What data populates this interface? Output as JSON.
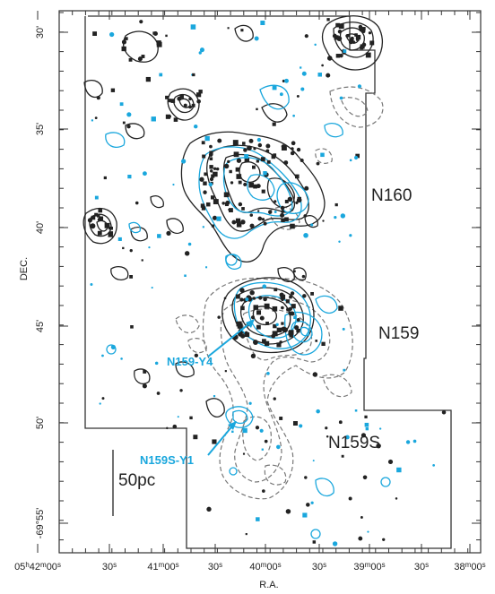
{
  "figure": {
    "axes": {
      "xlabel": "R.A.",
      "ylabel": "DEC.",
      "x_ticks": [
        {
          "label": "05h42m00s",
          "parts": [
            [
              "05",
              ""
            ],
            [
              "h",
              "sup"
            ],
            [
              "42",
              ""
            ],
            [
              "m",
              "sup"
            ],
            [
              "00",
              ""
            ],
            [
              "s",
              "sup"
            ]
          ]
        },
        {
          "label": "30s",
          "parts": [
            [
              "30",
              ""
            ],
            [
              "s",
              "sup"
            ]
          ]
        },
        {
          "label": "41m00s",
          "parts": [
            [
              "41",
              ""
            ],
            [
              "m",
              "sup"
            ],
            [
              "00",
              ""
            ],
            [
              "s",
              "sup"
            ]
          ]
        },
        {
          "label": "30s",
          "parts": [
            [
              "30",
              ""
            ],
            [
              "s",
              "sup"
            ]
          ]
        },
        {
          "label": "40m00s",
          "parts": [
            [
              "40",
              ""
            ],
            [
              "m",
              "sup"
            ],
            [
              "00",
              ""
            ],
            [
              "s",
              "sup"
            ]
          ]
        },
        {
          "label": "30s",
          "parts": [
            [
              "30",
              ""
            ],
            [
              "s",
              "sup"
            ]
          ]
        },
        {
          "label": "39m00s",
          "parts": [
            [
              "39",
              ""
            ],
            [
              "m",
              "sup"
            ],
            [
              "00",
              ""
            ],
            [
              "s",
              "sup"
            ]
          ]
        },
        {
          "label": "30s",
          "parts": [
            [
              "30",
              ""
            ],
            [
              "s",
              "sup"
            ]
          ]
        },
        {
          "label": "38m00s",
          "parts": [
            [
              "38",
              ""
            ],
            [
              "m",
              "sup"
            ],
            [
              "00",
              ""
            ],
            [
              "s",
              "sup"
            ]
          ]
        }
      ],
      "y_ticks": [
        {
          "label": "30'",
          "value": 30
        },
        {
          "label": "35'",
          "value": 35
        },
        {
          "label": "40'",
          "value": 40
        },
        {
          "label": "45'",
          "value": 45
        },
        {
          "label": "50'",
          "value": 50
        },
        {
          "label": "-69°55'",
          "value": 55
        }
      ]
    },
    "regions": [
      {
        "name": "N160"
      },
      {
        "name": "N159"
      },
      {
        "name": "N159S"
      }
    ],
    "sources": [
      {
        "name": "N159-Y4"
      },
      {
        "name": "N159S-Y1"
      }
    ],
    "scale_bar": {
      "label": "50pc"
    },
    "colors": {
      "black_contours": "#222222",
      "blue_contours": "#1aa7dd",
      "dashed_contours": "#777777"
    }
  }
}
